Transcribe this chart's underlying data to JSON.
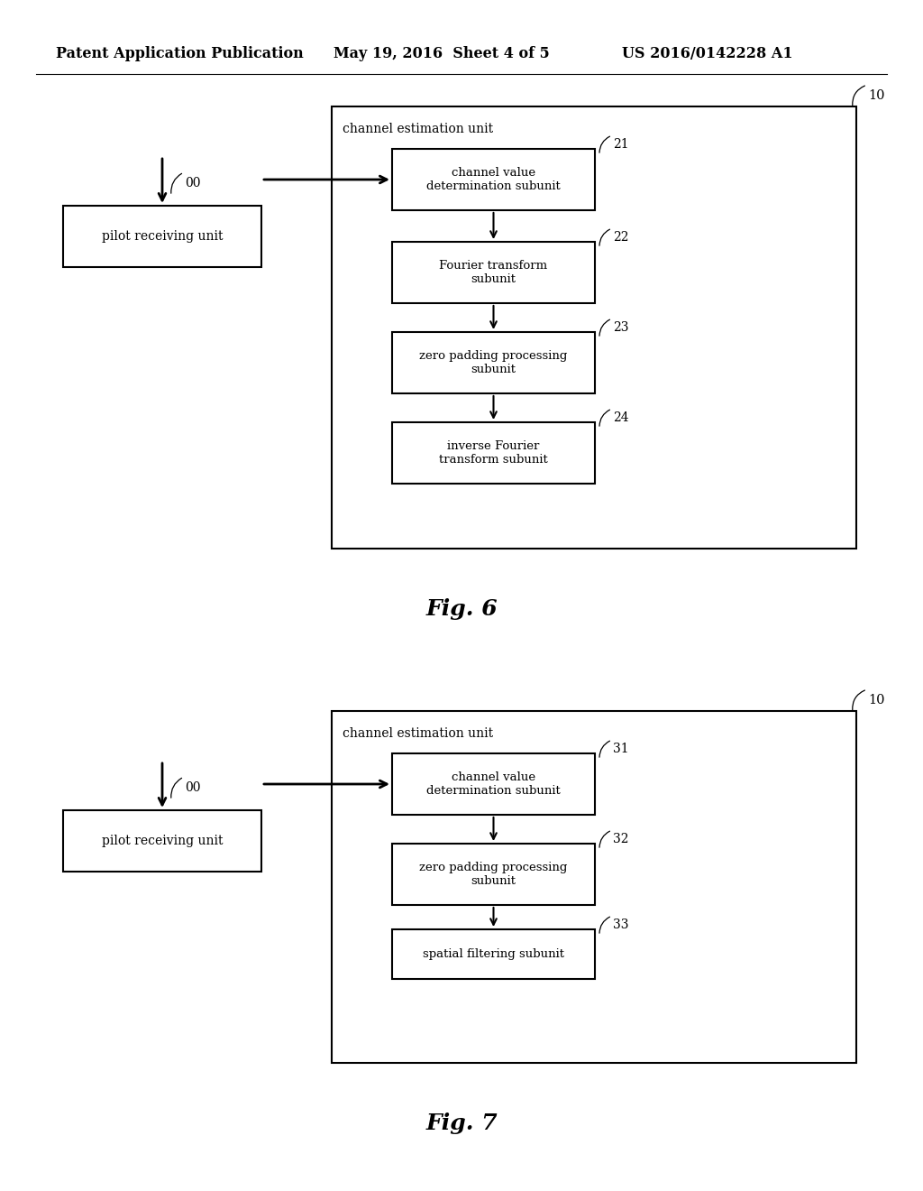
{
  "header_left": "Patent Application Publication",
  "header_mid": "May 19, 2016  Sheet 4 of 5",
  "header_right": "US 2016/0142228 A1",
  "fig6_label": "Fig. 6",
  "fig7_label": "Fig. 7",
  "bg_color": "#ffffff",
  "fig6": {
    "outer_label": "10",
    "channel_est_label": "channel estimation unit",
    "pilot_label": "pilot receiving unit",
    "pilot_ref": "00",
    "boxes": [
      {
        "label": "channel value\ndetermination subunit",
        "ref": "21"
      },
      {
        "label": "Fourier transform\nsubunit",
        "ref": "22"
      },
      {
        "label": "zero padding processing\nsubunit",
        "ref": "23"
      },
      {
        "label": "inverse Fourier\ntransform subunit",
        "ref": "24"
      }
    ]
  },
  "fig7": {
    "outer_label": "10",
    "channel_est_label": "channel estimation unit",
    "pilot_label": "pilot receiving unit",
    "pilot_ref": "00",
    "boxes": [
      {
        "label": "channel value\ndetermination subunit",
        "ref": "31"
      },
      {
        "label": "zero padding processing\nsubunit",
        "ref": "32"
      },
      {
        "label": "spatial filtering subunit",
        "ref": "33"
      }
    ]
  }
}
